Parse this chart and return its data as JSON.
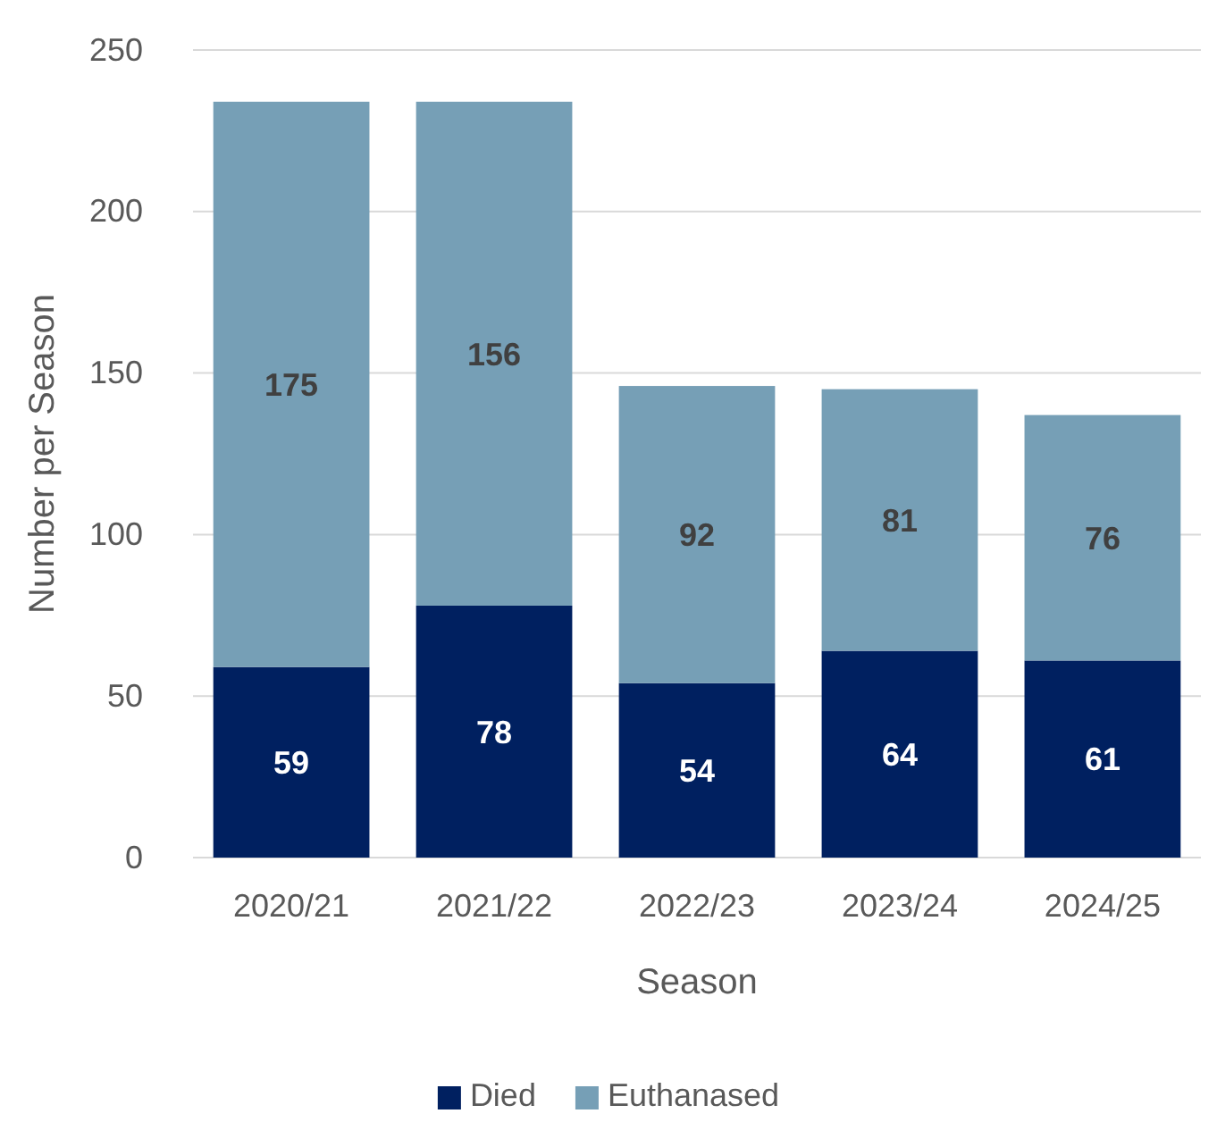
{
  "chart_data": {
    "type": "bar",
    "stacked": true,
    "xlabel": "Season",
    "ylabel": "Number per Season",
    "categories": [
      "2020/21",
      "2021/22",
      "2022/23",
      "2023/24",
      "2024/25"
    ],
    "series": [
      {
        "name": "Died",
        "color": "#002060",
        "values": [
          59,
          78,
          54,
          64,
          61
        ]
      },
      {
        "name": "Euthanased",
        "color": "#769fb6",
        "values": [
          175,
          156,
          92,
          81,
          76
        ]
      }
    ],
    "ylim": [
      0,
      250
    ],
    "yticks": [
      0,
      50,
      100,
      150,
      200,
      250
    ],
    "grid": "y",
    "legend": "bottom",
    "data_labels": true
  }
}
